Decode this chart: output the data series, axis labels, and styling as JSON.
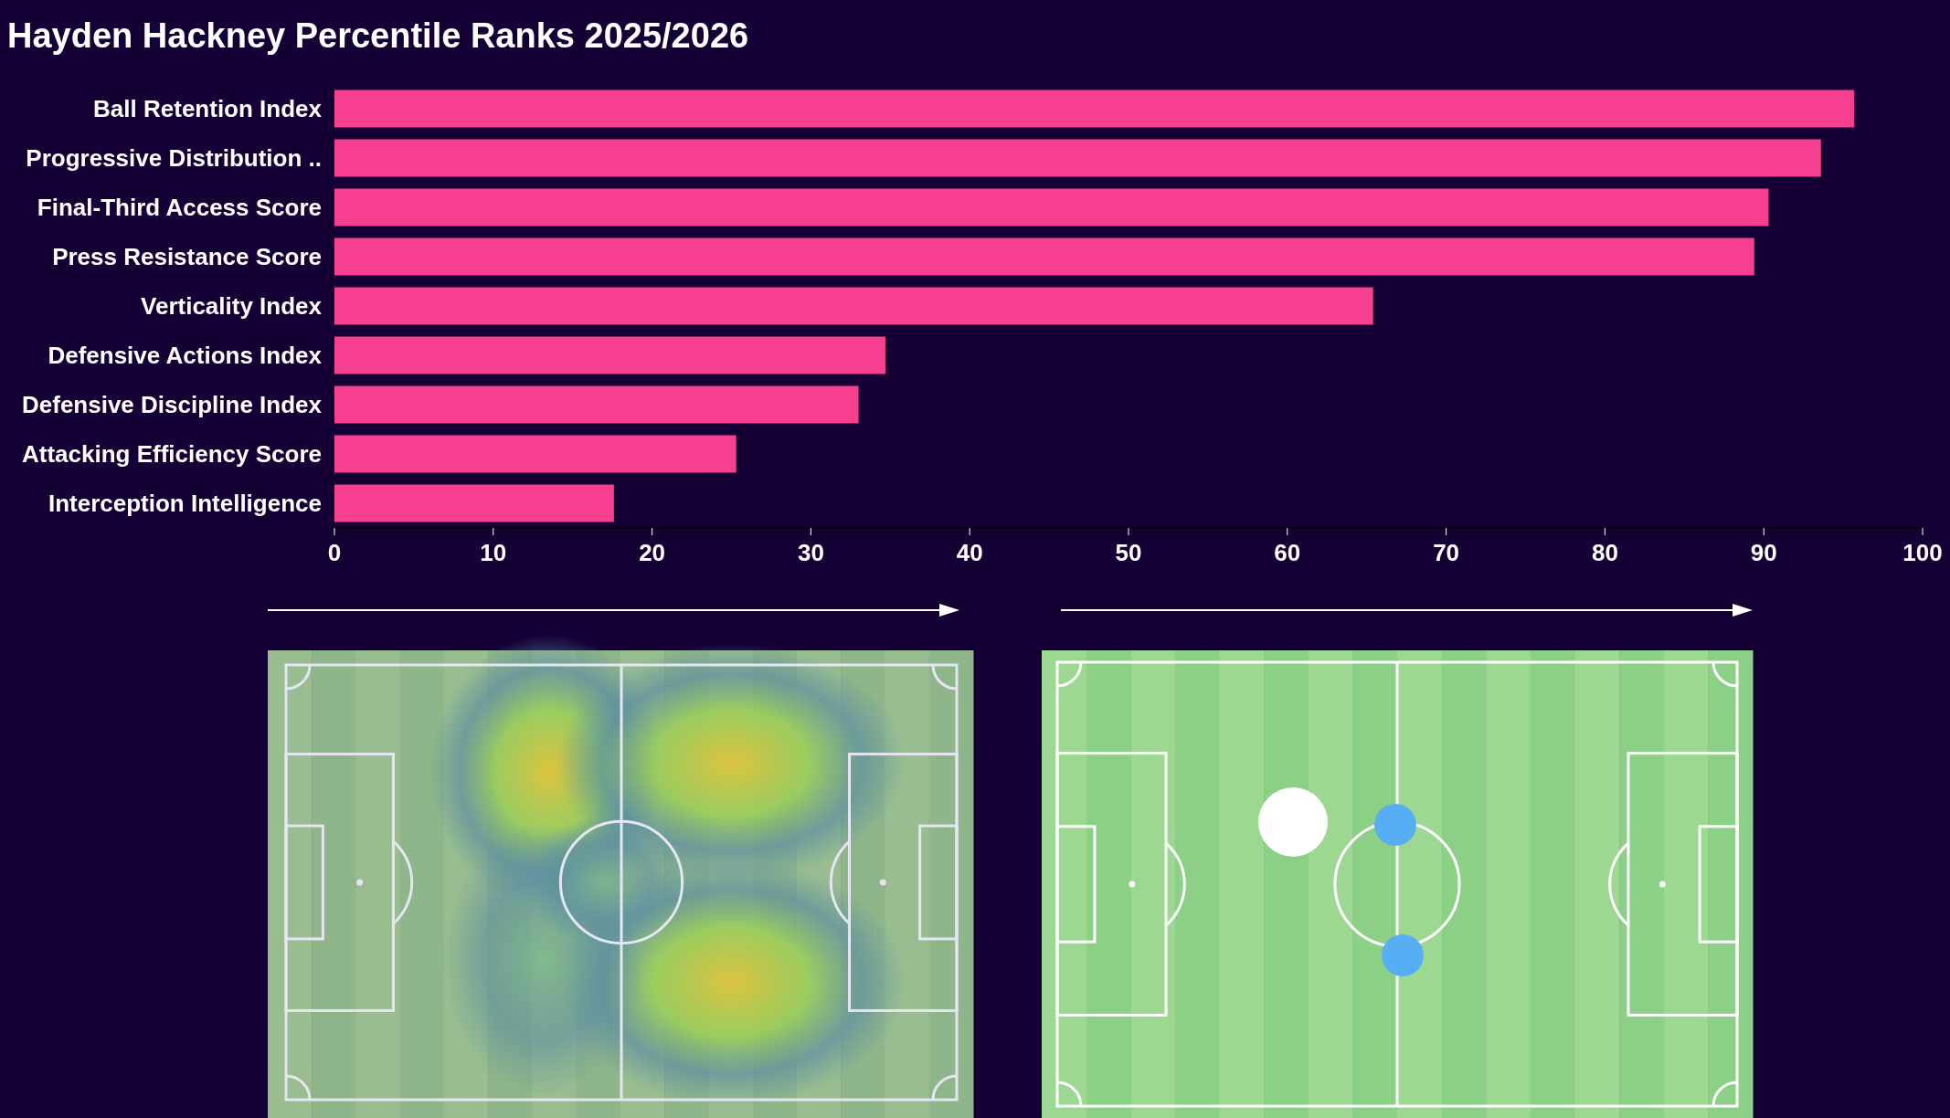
{
  "chart_data": {
    "type": "bar",
    "orientation": "horizontal",
    "title": "Hayden Hackney Percentile Ranks 2025/2026",
    "categories": [
      "Ball Retention Index",
      "Progressive Distribution ..",
      "Final-Third Access Score",
      "Press Resistance Score",
      "Verticality Index",
      "Defensive Actions Index",
      "Defensive Discipline Index",
      "Attacking Efficiency Score",
      "Interception Intelligence"
    ],
    "values": [
      95.7,
      93.6,
      90.3,
      89.4,
      65.4,
      34.7,
      33.0,
      25.3,
      17.6
    ],
    "color": "#f73f8f",
    "xlim": [
      0,
      100
    ],
    "xticks": [
      0,
      10,
      20,
      30,
      40,
      50,
      60,
      70,
      80,
      90,
      100
    ]
  }
}
